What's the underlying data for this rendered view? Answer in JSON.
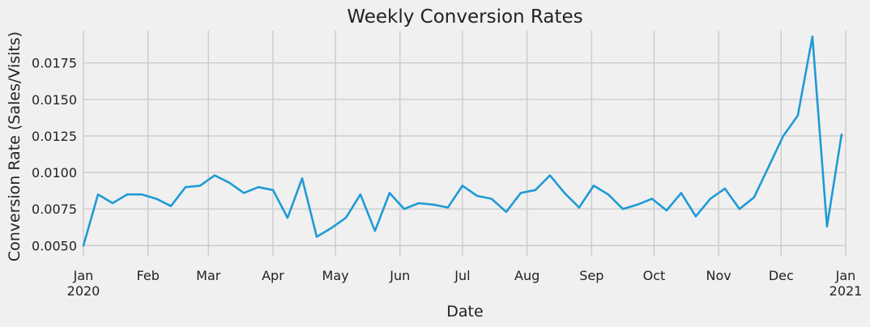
{
  "chart_data": {
    "type": "line",
    "title": "Weekly Conversion Rates",
    "xlabel": "Date",
    "ylabel": "Conversion Rate (Sales/Visits)",
    "grid": true,
    "line_color": "#1f9ad6",
    "x_range": [
      "2020-01-01",
      "2021-01-01"
    ],
    "ylim": [
      0.0043,
      0.0197
    ],
    "y_ticks": [
      "0.0050",
      "0.0075",
      "0.0100",
      "0.0125",
      "0.0150",
      "0.0175"
    ],
    "x_ticks": [
      {
        "label": "Jan",
        "sub": "2020",
        "date": "2020-01-01"
      },
      {
        "label": "Feb",
        "sub": "",
        "date": "2020-02-01"
      },
      {
        "label": "Mar",
        "sub": "",
        "date": "2020-03-01"
      },
      {
        "label": "Apr",
        "sub": "",
        "date": "2020-04-01"
      },
      {
        "label": "May",
        "sub": "",
        "date": "2020-05-01"
      },
      {
        "label": "Jun",
        "sub": "",
        "date": "2020-06-01"
      },
      {
        "label": "Jul",
        "sub": "",
        "date": "2020-07-01"
      },
      {
        "label": "Aug",
        "sub": "",
        "date": "2020-08-01"
      },
      {
        "label": "Sep",
        "sub": "",
        "date": "2020-09-01"
      },
      {
        "label": "Oct",
        "sub": "",
        "date": "2020-10-01"
      },
      {
        "label": "Nov",
        "sub": "",
        "date": "2020-11-01"
      },
      {
        "label": "Dec",
        "sub": "",
        "date": "2020-12-01"
      },
      {
        "label": "Jan",
        "sub": "2021",
        "date": "2021-01-01"
      }
    ],
    "series": [
      {
        "x": [
          "2020-01-01",
          "2020-01-08",
          "2020-01-15",
          "2020-01-22",
          "2020-01-29",
          "2020-02-05",
          "2020-02-12",
          "2020-02-19",
          "2020-02-26",
          "2020-03-04",
          "2020-03-11",
          "2020-03-18",
          "2020-03-25",
          "2020-04-01",
          "2020-04-08",
          "2020-04-15",
          "2020-04-22",
          "2020-04-29",
          "2020-05-06",
          "2020-05-13",
          "2020-05-20",
          "2020-05-27",
          "2020-06-03",
          "2020-06-10",
          "2020-06-17",
          "2020-06-24",
          "2020-07-01",
          "2020-07-08",
          "2020-07-15",
          "2020-07-22",
          "2020-07-29",
          "2020-08-05",
          "2020-08-12",
          "2020-08-19",
          "2020-08-26",
          "2020-09-02",
          "2020-09-09",
          "2020-09-16",
          "2020-09-23",
          "2020-09-30",
          "2020-10-07",
          "2020-10-14",
          "2020-10-21",
          "2020-10-28",
          "2020-11-04",
          "2020-11-11",
          "2020-11-18",
          "2020-11-25",
          "2020-12-02",
          "2020-12-09",
          "2020-12-16",
          "2020-12-23",
          "2020-12-30"
        ],
        "values": [
          0.005,
          0.0085,
          0.0079,
          0.0085,
          0.0085,
          0.0082,
          0.0077,
          0.009,
          0.0091,
          0.0098,
          0.0093,
          0.0086,
          0.009,
          0.0088,
          0.0069,
          0.0096,
          0.0056,
          0.0062,
          0.0069,
          0.0085,
          0.006,
          0.0086,
          0.0075,
          0.0079,
          0.0078,
          0.0076,
          0.0091,
          0.0084,
          0.0082,
          0.0073,
          0.0086,
          0.0088,
          0.0098,
          0.0086,
          0.0076,
          0.0091,
          0.0085,
          0.0075,
          0.0078,
          0.0082,
          0.0074,
          0.0086,
          0.007,
          0.0082,
          0.0089,
          0.0075,
          0.0083,
          0.0104,
          0.0125,
          0.0139,
          0.0193,
          0.0063,
          0.0126
        ]
      }
    ]
  }
}
